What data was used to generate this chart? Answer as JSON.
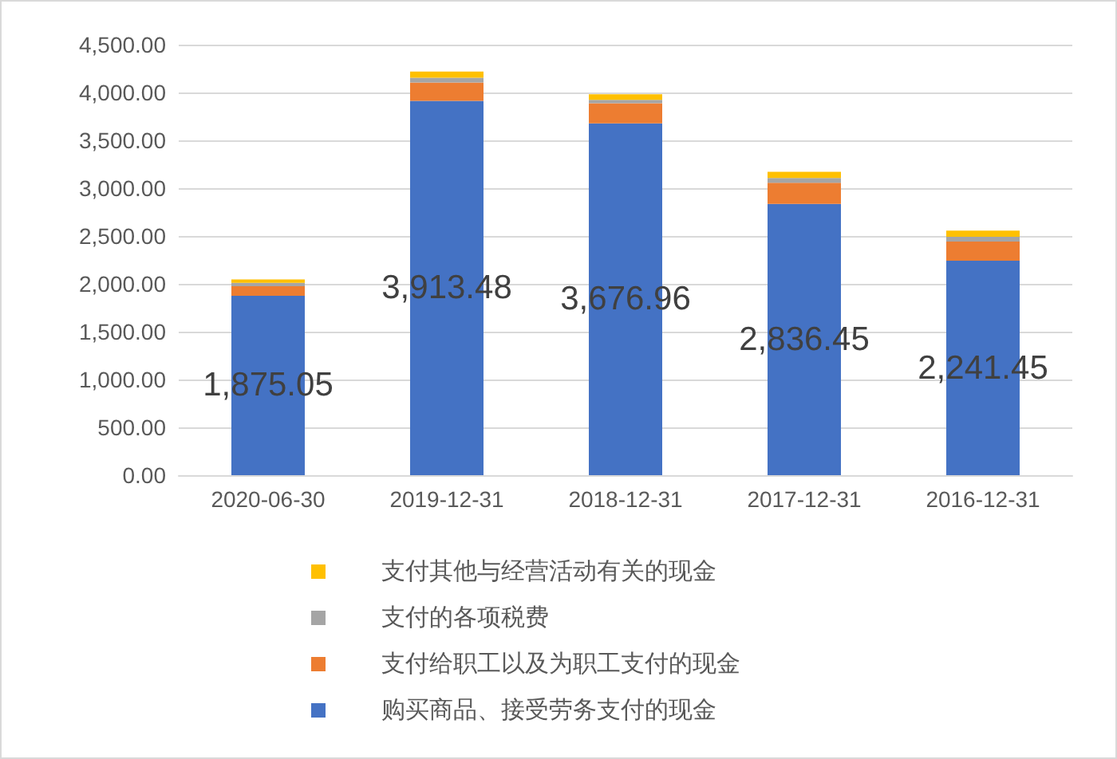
{
  "chart_data": {
    "type": "bar",
    "stacked": true,
    "categories": [
      "2020-06-30",
      "2019-12-31",
      "2018-12-31",
      "2017-12-31",
      "2016-12-31"
    ],
    "series": [
      {
        "name": "购买商品、接受劳务支付的现金",
        "color": "#4472c4",
        "values": [
          1875.05,
          3913.48,
          3676.96,
          2836.45,
          2241.45
        ],
        "value_labels": [
          "1,875.05",
          "3,913.48",
          "3,676.96",
          "2,836.45",
          "2,241.45"
        ]
      },
      {
        "name": "支付给职工以及为职工支付的现金",
        "color": "#ed7d31",
        "values": [
          100,
          190,
          210,
          220,
          200
        ]
      },
      {
        "name": "支付的各项税费",
        "color": "#a5a5a5",
        "values": [
          35,
          50,
          35,
          50,
          50
        ]
      },
      {
        "name": "支付其他与经营活动有关的现金",
        "color": "#ffc000",
        "values": [
          35,
          65,
          60,
          65,
          65
        ]
      }
    ],
    "ylim": [
      0,
      4500
    ],
    "yticks": [
      {
        "value": 0,
        "label": "0.00"
      },
      {
        "value": 500,
        "label": "500.00"
      },
      {
        "value": 1000,
        "label": "1,000.00"
      },
      {
        "value": 1500,
        "label": "1,500.00"
      },
      {
        "value": 2000,
        "label": "2,000.00"
      },
      {
        "value": 2500,
        "label": "2,500.00"
      },
      {
        "value": 3000,
        "label": "3,000.00"
      },
      {
        "value": 3500,
        "label": "3,500.00"
      },
      {
        "value": 4000,
        "label": "4,000.00"
      },
      {
        "value": 4500,
        "label": "4,500.00"
      }
    ],
    "grid": "y",
    "legend": "bottom"
  }
}
